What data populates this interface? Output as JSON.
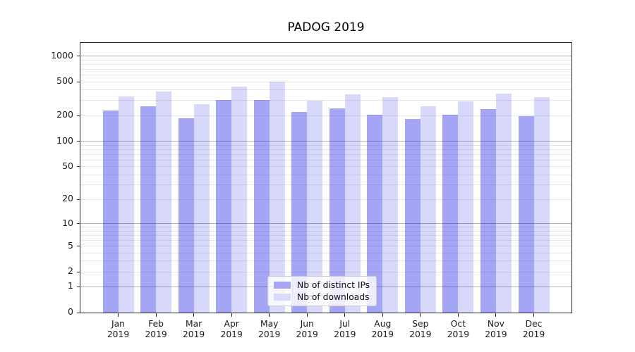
{
  "chart_data": {
    "type": "bar",
    "title": "PADOG 2019",
    "categories": [
      "Jan",
      "Feb",
      "Mar",
      "Apr",
      "May",
      "Jun",
      "Jul",
      "Aug",
      "Sep",
      "Oct",
      "Nov",
      "Dec"
    ],
    "category_year": "2019",
    "series": [
      {
        "name": "Nb of distinct IPs",
        "color": "rgba(10,10,228,0.37)",
        "legend_color": "#a6a6f4",
        "values": [
          230,
          258,
          187,
          307,
          303,
          220,
          242,
          205,
          183,
          206,
          240,
          196
        ]
      },
      {
        "name": "Nb of downloads",
        "color": "rgba(10,10,228,0.16)",
        "legend_color": "#dadafb",
        "values": [
          335,
          385,
          275,
          435,
          505,
          300,
          358,
          328,
          258,
          295,
          365,
          328
        ]
      }
    ],
    "y_axis": {
      "scale": "log1p",
      "tick_labels": [
        0,
        1,
        2,
        5,
        10,
        20,
        50,
        100,
        200,
        500,
        1000
      ],
      "major_gridlines": [
        1,
        10,
        100,
        1000
      ],
      "minor_gridline_decades": [
        1,
        10,
        100
      ],
      "top_value": 1420
    },
    "xlabel": "",
    "ylabel": "",
    "grid": "horizontal major+minor",
    "legend_position": "inside bottom-center"
  },
  "colors": {
    "grid_major": "#b0b0b0",
    "grid_minor": "#e7e7e7",
    "spine": "#262626",
    "text": "#1a1a1a",
    "legend_border": "#cccccc",
    "legend_bg": "rgba(255,255,255,0.8)"
  }
}
